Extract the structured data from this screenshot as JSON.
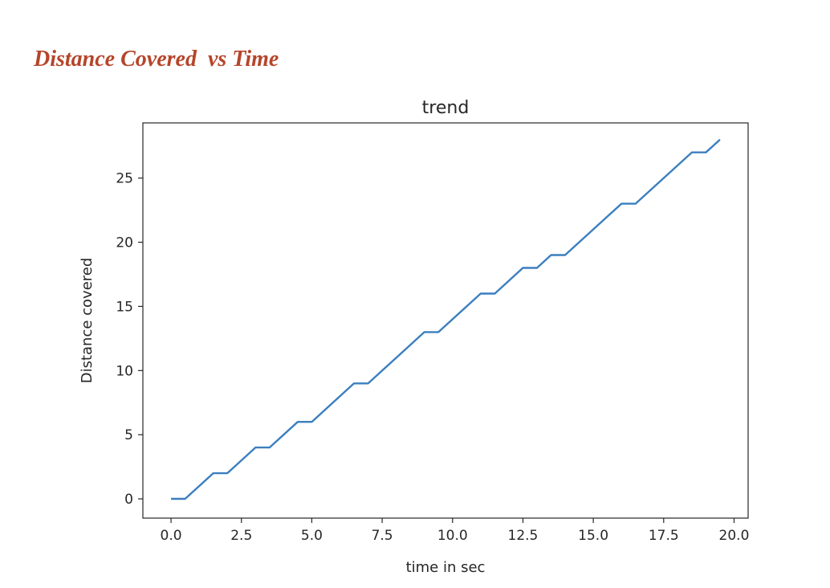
{
  "heading": "Distance Covered  vs Time",
  "chart_data": {
    "type": "line",
    "title": "trend",
    "xlabel": "time in sec",
    "ylabel": "Distance covered",
    "xlim": [
      -1.0,
      20.5
    ],
    "ylim": [
      -1.5,
      29.3
    ],
    "xticks": [
      0.0,
      2.5,
      5.0,
      7.5,
      10.0,
      12.5,
      15.0,
      17.5,
      20.0
    ],
    "xtick_labels": [
      "0.0",
      "2.5",
      "5.0",
      "7.5",
      "10.0",
      "12.5",
      "15.0",
      "17.5",
      "20.0"
    ],
    "yticks": [
      0,
      5,
      10,
      15,
      20,
      25
    ],
    "ytick_labels": [
      "0",
      "5",
      "10",
      "15",
      "20",
      "25"
    ],
    "grid": false,
    "line_color": "#3b7fbf",
    "series": [
      {
        "x": [
          0.0,
          0.5,
          1.5,
          2.0,
          3.0,
          3.5,
          4.5,
          5.0,
          6.5,
          7.0,
          9.0,
          9.5,
          11.0,
          11.5,
          12.5,
          13.0,
          13.5,
          14.0,
          16.0,
          16.5,
          18.5,
          19.0,
          19.5
        ],
        "y": [
          0,
          0,
          2,
          2,
          4,
          4,
          6,
          6,
          9,
          9,
          13,
          13,
          16,
          16,
          18,
          18,
          19,
          19,
          23,
          23,
          27,
          27,
          28
        ]
      }
    ]
  }
}
